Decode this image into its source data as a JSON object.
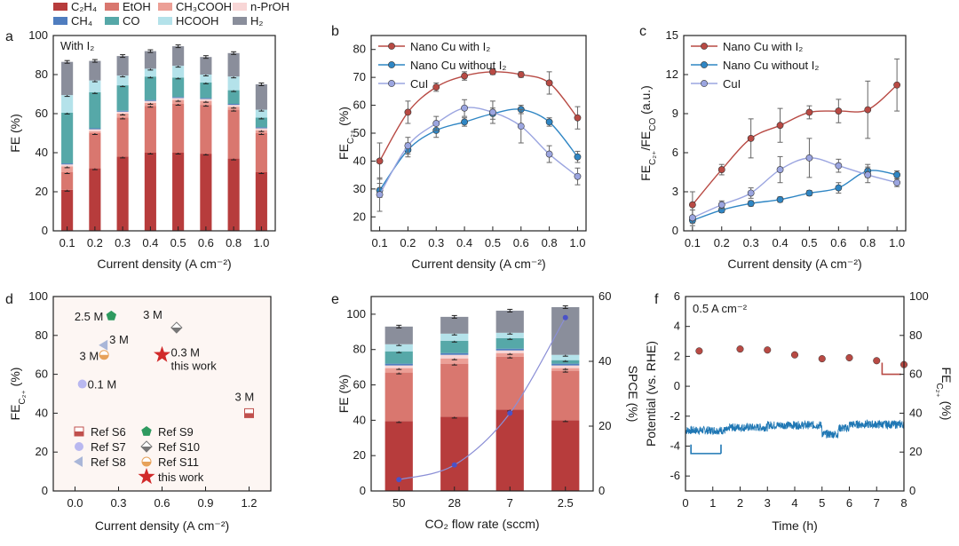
{
  "panel_labels": [
    "a",
    "b",
    "c",
    "d",
    "e",
    "f"
  ],
  "top_legend": [
    {
      "label": "C₂H₄",
      "color": "#b73c3c"
    },
    {
      "label": "EtOH",
      "color": "#d9776f"
    },
    {
      "label": "CH₃COOH",
      "color": "#ec9f96"
    },
    {
      "label": "n-PrOH",
      "color": "#f8d6d6"
    },
    {
      "label": "CH₄",
      "color": "#4f7dbf"
    },
    {
      "label": "CO",
      "color": "#56a8a8"
    },
    {
      "label": "HCOOH",
      "color": "#b4e2ea"
    },
    {
      "label": "H₂",
      "color": "#8a8e9b"
    }
  ],
  "chart_data": [
    {
      "id": "a",
      "type": "bar",
      "stacked": true,
      "annotation": "With I₂",
      "xlabel": "Current density (A cm⁻²)",
      "ylabel": "FE (%)",
      "ylim": [
        0,
        100
      ],
      "yticks": [
        0,
        20,
        40,
        60,
        80,
        100
      ],
      "categories": [
        "0.1",
        "0.2",
        "0.3",
        "0.4",
        "0.5",
        "0.6",
        "0.8",
        "1.0"
      ],
      "series": [
        {
          "name": "C₂H₄",
          "color": "#b73c3c",
          "values": [
            21,
            32,
            38,
            40,
            40,
            39.5,
            37,
            30
          ]
        },
        {
          "name": "EtOH",
          "color": "#d9776f",
          "values": [
            9,
            18,
            20,
            24,
            25,
            25,
            25,
            20
          ]
        },
        {
          "name": "CH₃COOH",
          "color": "#ec9f96",
          "values": [
            3,
            1,
            2,
            1.5,
            2,
            2,
            1.5,
            1.5
          ]
        },
        {
          "name": "n-PrOH",
          "color": "#f8d6d6",
          "values": [
            1,
            1,
            1,
            1,
            1,
            1,
            1,
            1
          ]
        },
        {
          "name": "CH₄",
          "color": "#4f7dbf",
          "values": [
            0.5,
            0.5,
            0.5,
            0.5,
            0.5,
            0.5,
            0.5,
            0.5
          ]
        },
        {
          "name": "CO",
          "color": "#56a8a8",
          "values": [
            26,
            18.5,
            13,
            12,
            10,
            8,
            7,
            5
          ]
        },
        {
          "name": "HCOOH",
          "color": "#b4e2ea",
          "values": [
            9,
            6,
            5,
            4,
            6,
            4,
            7,
            4
          ]
        },
        {
          "name": "H₂",
          "color": "#8a8e9b",
          "values": [
            17,
            10,
            10,
            9,
            10,
            9,
            12,
            13
          ]
        }
      ]
    },
    {
      "id": "b",
      "type": "line",
      "xlabel": "Current density (A cm⁻²)",
      "ylabel": "FE_C2+ (%)",
      "ylim": [
        15,
        85
      ],
      "yticks": [
        20,
        30,
        40,
        50,
        60,
        70,
        80
      ],
      "x": [
        0.1,
        0.2,
        0.3,
        0.4,
        0.5,
        0.6,
        0.8,
        1.0
      ],
      "series": [
        {
          "name": "Nano Cu with I₂",
          "color": "#b84a44",
          "values": [
            40,
            57.5,
            66.5,
            70.5,
            72,
            71,
            68,
            55.5
          ],
          "err": [
            6.5,
            4,
            1.5,
            1.5,
            1,
            1,
            4,
            4
          ]
        },
        {
          "name": "Nano Cu without I₂",
          "color": "#2f86c4",
          "values": [
            29.5,
            44,
            51,
            54,
            57,
            58.5,
            54,
            41.5
          ],
          "err": [
            2.5,
            2.5,
            2.5,
            1.5,
            2,
            1.5,
            1.5,
            2
          ]
        },
        {
          "name": "CuI",
          "color": "#9ba5e0",
          "values": [
            28,
            45.5,
            53.5,
            59,
            57.5,
            52.5,
            42.5,
            34.5
          ],
          "err": [
            6,
            3,
            2.5,
            3,
            4,
            6,
            3,
            3
          ]
        }
      ]
    },
    {
      "id": "c",
      "type": "line",
      "xlabel": "Current density (A cm⁻²)",
      "ylabel": "FE_C2+/FE_CO (a.u.)",
      "ylim": [
        0,
        15
      ],
      "yticks": [
        0,
        3,
        6,
        9,
        12,
        15
      ],
      "x": [
        0.1,
        0.2,
        0.3,
        0.4,
        0.5,
        0.6,
        0.8,
        1.0
      ],
      "series": [
        {
          "name": "Nano Cu with I₂",
          "color": "#b84a44",
          "values": [
            2,
            4.7,
            7.1,
            8.1,
            9.1,
            9.2,
            9.3,
            11.2
          ],
          "err": [
            1,
            0.4,
            1.5,
            1.3,
            0.5,
            0.9,
            2.2,
            2
          ]
        },
        {
          "name": "Nano Cu without I₂",
          "color": "#2f86c4",
          "values": [
            0.8,
            1.6,
            2.1,
            2.4,
            2.9,
            3.3,
            4.6,
            4.3
          ],
          "err": [
            0.2,
            0.2,
            0.2,
            0.2,
            0.2,
            0.4,
            0.5,
            0.3
          ]
        },
        {
          "name": "CuI",
          "color": "#9ba5e0",
          "values": [
            1,
            2,
            2.9,
            4.7,
            5.6,
            5,
            4.3,
            3.7
          ],
          "err": [
            0.6,
            0.3,
            0.4,
            1,
            1.5,
            0.5,
            0.6,
            0.3
          ]
        }
      ]
    },
    {
      "id": "d",
      "type": "scatter",
      "xlabel": "Current density (A cm⁻²)",
      "ylabel": "FE_C2+ (%)",
      "xlim": [
        -0.15,
        1.35
      ],
      "ylim": [
        0,
        100
      ],
      "xticks": [
        "0.0",
        "0.3",
        "0.6",
        "0.9",
        "1.2"
      ],
      "yticks": [
        0,
        20,
        40,
        60,
        80,
        100
      ],
      "points": [
        {
          "ref": "Ref S6",
          "x": 1.2,
          "y": 40,
          "label": "3 M",
          "shape": "square-half",
          "color": "#c0504d"
        },
        {
          "ref": "Ref S7",
          "x": 0.05,
          "y": 55,
          "label": "0.1 M",
          "shape": "circle",
          "color": "#b9b8f0"
        },
        {
          "ref": "Ref S8",
          "x": 0.2,
          "y": 75,
          "label": "3 M",
          "shape": "triangle",
          "color": "#a9b6d8"
        },
        {
          "ref": "Ref S9",
          "x": 0.25,
          "y": 90,
          "label": "2.5 M",
          "shape": "pentagon",
          "color": "#2e9a5f"
        },
        {
          "ref": "Ref S10",
          "x": 0.7,
          "y": 84,
          "label": "3 M",
          "shape": "diamond-half",
          "color": "#777777"
        },
        {
          "ref": "Ref S11",
          "x": 0.2,
          "y": 70,
          "label": "3 M",
          "shape": "circle-half",
          "color": "#e7a25a"
        },
        {
          "ref": "this work",
          "x": 0.6,
          "y": 70,
          "label": "0.3 M",
          "shape": "star",
          "color": "#d12a2a"
        }
      ],
      "note": "this work"
    },
    {
      "id": "e",
      "type": "bar",
      "stacked": true,
      "xlabel": "CO₂ flow rate (sccm)",
      "ylabel": "FE (%)",
      "y2label": "SPCE (%)",
      "ylim": [
        0,
        110
      ],
      "y2lim": [
        0,
        60
      ],
      "yticks": [
        0,
        20,
        40,
        60,
        80,
        100
      ],
      "y2ticks": [
        0,
        20,
        40,
        60
      ],
      "categories": [
        "50",
        "28",
        "7",
        "2.5"
      ],
      "series": [
        {
          "name": "C₂H₄",
          "color": "#b73c3c",
          "values": [
            39.5,
            42,
            46,
            40
          ]
        },
        {
          "name": "EtOH",
          "color": "#d9776f",
          "values": [
            27.5,
            30,
            30,
            28
          ]
        },
        {
          "name": "CH₃COOH",
          "color": "#ec9f96",
          "values": [
            2.5,
            3,
            2,
            1.5
          ]
        },
        {
          "name": "n-PrOH",
          "color": "#f8d6d6",
          "values": [
            1.5,
            2,
            1.5,
            1.5
          ]
        },
        {
          "name": "CH₄",
          "color": "#4f7dbf",
          "values": [
            1,
            1,
            1,
            1
          ]
        },
        {
          "name": "CO",
          "color": "#56a8a8",
          "values": [
            7,
            7,
            6,
            2
          ]
        },
        {
          "name": "HCOOH",
          "color": "#b4e2ea",
          "values": [
            4,
            4,
            3,
            3
          ]
        },
        {
          "name": "H₂",
          "color": "#8a8e9b",
          "values": [
            10,
            9.5,
            12.5,
            27
          ]
        }
      ],
      "spce": {
        "name": "SPCE",
        "color": "#8b8fd6",
        "values": [
          3.5,
          8,
          24,
          53.5
        ]
      }
    },
    {
      "id": "f",
      "type": "line",
      "annotation": "0.5 A cm⁻²",
      "xlabel": "Time (h)",
      "ylabel": "Potential (vs. RHE)",
      "y2label": "FE_C2+ (%)",
      "xlim": [
        0,
        8
      ],
      "ylim": [
        -7,
        6
      ],
      "y2lim": [
        0,
        100
      ],
      "xticks": [
        0,
        1,
        2,
        3,
        4,
        5,
        6,
        7,
        8
      ],
      "yticks": [
        -6,
        -4,
        -2,
        0,
        2,
        4,
        6
      ],
      "y2ticks": [
        0,
        20,
        40,
        60,
        80,
        100
      ],
      "potential": {
        "color": "#1f77b4",
        "mean": -2.95,
        "noise": 0.25,
        "shifts": [
          {
            "t": [
              1.6,
              3.0
            ],
            "v": -2.75
          },
          {
            "t": [
              3.0,
              5.0
            ],
            "v": -2.6
          },
          {
            "t": [
              5.0,
              5.6
            ],
            "v": -3.2
          },
          {
            "t": [
              5.6,
              6.0
            ],
            "v": -2.8
          },
          {
            "t": [
              6.0,
              8.0
            ],
            "v": -2.55
          }
        ]
      },
      "fe": {
        "color": "#b84a44",
        "t": [
          0.5,
          2,
          3,
          4,
          5,
          6,
          7,
          8
        ],
        "values": [
          72,
          73,
          72.5,
          70,
          68,
          68.5,
          67,
          65
        ]
      }
    }
  ]
}
